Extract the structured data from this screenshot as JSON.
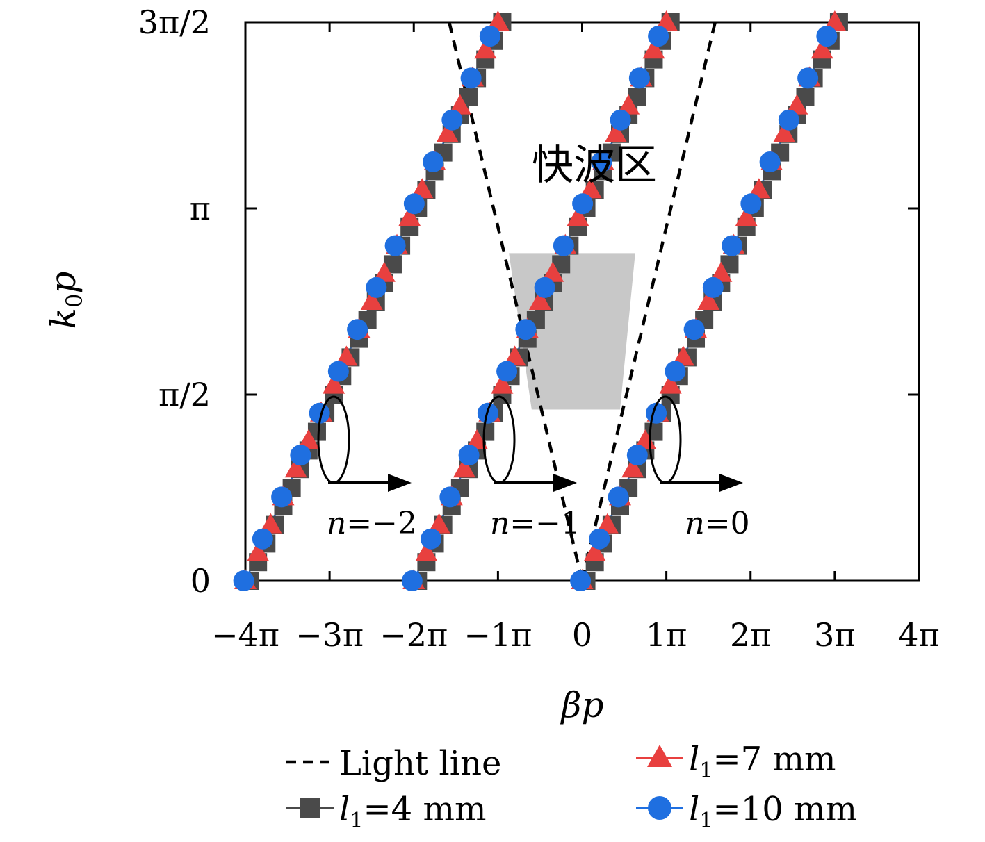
{
  "chart_data": {
    "type": "line",
    "xlabel": "βp",
    "ylabel": "k0p",
    "x_units": "π",
    "y_units": "π",
    "xlim": [
      -4,
      4
    ],
    "ylim": [
      0,
      1.5
    ],
    "x_ticks": [
      {
        "value": -4,
        "label": "−4π"
      },
      {
        "value": -3,
        "label": "−3π"
      },
      {
        "value": -2,
        "label": "−2π"
      },
      {
        "value": -1,
        "label": "−1π"
      },
      {
        "value": 0,
        "label": "0"
      },
      {
        "value": 1,
        "label": "1π"
      },
      {
        "value": 2,
        "label": "2π"
      },
      {
        "value": 3,
        "label": "3π"
      },
      {
        "value": 4,
        "label": "4π"
      }
    ],
    "y_ticks": [
      {
        "value": 0,
        "label": "0"
      },
      {
        "value": 0.5,
        "label": "π/2"
      },
      {
        "value": 1,
        "label": "π"
      },
      {
        "value": 1.5,
        "label": "3π/2"
      }
    ],
    "light_line_slope": 0.95,
    "shaded_region": {
      "x_top": [
        -0.87,
        0.63
      ],
      "x_bottom": [
        -0.6,
        0.45
      ],
      "y_range": [
        0.46,
        0.88
      ],
      "color": "#c8c8c8"
    },
    "region_label": "快波区",
    "branches": [
      {
        "label": "n=−2",
        "x0": -4
      },
      {
        "label": "n=−1",
        "x0": -2
      },
      {
        "label": "n=0",
        "x0": 0
      }
    ],
    "series": [
      {
        "name": "Light line",
        "style": "dashed",
        "color": "#000000"
      },
      {
        "name": "l1=4 mm",
        "marker": "square",
        "color": "#4a4a4a",
        "x_offset": 0.05,
        "k_step": 0.05
      },
      {
        "name": "l1=7 mm",
        "marker": "triangle",
        "color": "#e8403f",
        "x_offset": 0.0,
        "k_step": 0.075
      },
      {
        "name": "l1=10 mm",
        "marker": "circle",
        "color": "#1f6fe0",
        "x_offset": -0.02,
        "k_step": 0.1125
      }
    ],
    "slope_k_per_beta": 0.5,
    "legend": {
      "placement": "bottom",
      "items": [
        {
          "prefix": "Light line",
          "sub": "",
          "suffix": ""
        },
        {
          "prefix": "l",
          "sub": "1",
          "suffix": "=4 mm"
        },
        {
          "prefix": "l",
          "sub": "1",
          "suffix": "=7 mm"
        },
        {
          "prefix": "l",
          "sub": "1",
          "suffix": "=10 mm"
        }
      ]
    }
  }
}
